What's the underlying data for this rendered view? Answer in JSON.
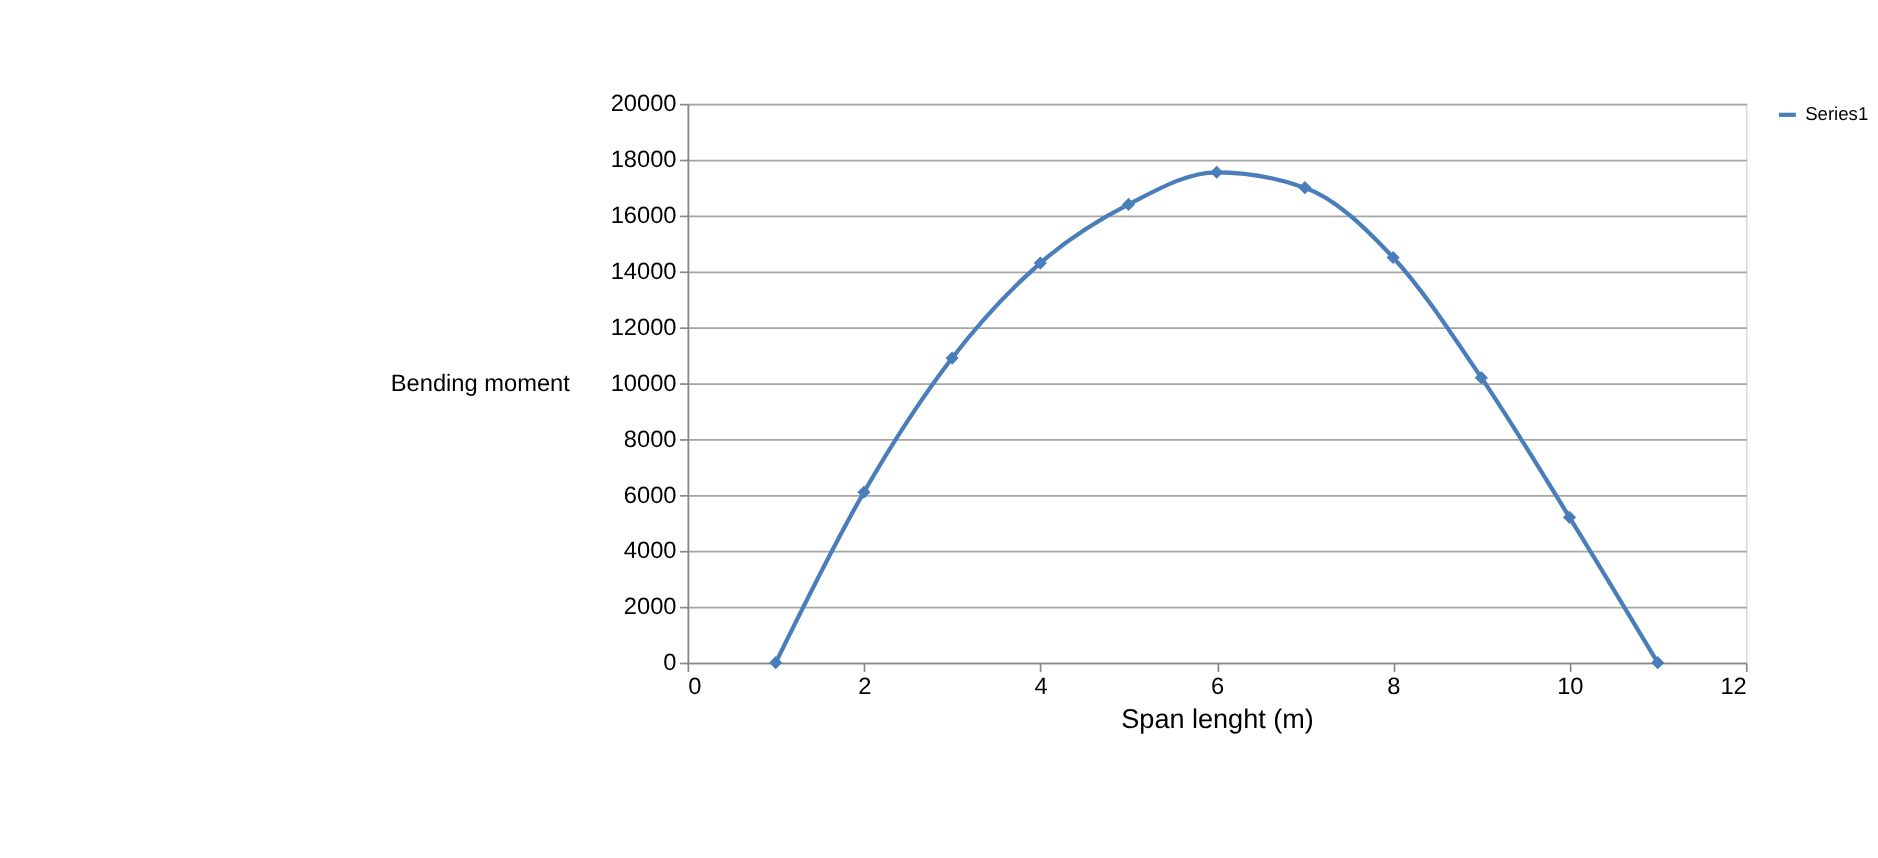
{
  "chart_data": {
    "type": "line",
    "xlabel": "Span lenght (m)",
    "ylabel": "Bending moment",
    "x": [
      1,
      2,
      3,
      4,
      5,
      6,
      7,
      8,
      9,
      10,
      11
    ],
    "series": [
      {
        "name": "Series1",
        "color": "#4a7ebb",
        "values": [
          0,
          6100,
          10900,
          14300,
          16400,
          17550,
          17000,
          14500,
          10200,
          5200,
          0
        ]
      }
    ],
    "xlim": [
      0,
      12
    ],
    "xticks": [
      0,
      2,
      4,
      6,
      8,
      10,
      12
    ],
    "ylim": [
      0,
      20000
    ],
    "yticks": [
      0,
      2000,
      4000,
      6000,
      8000,
      10000,
      12000,
      14000,
      16000,
      18000,
      20000
    ],
    "grid": "y",
    "legend": "right",
    "marker": "diamond",
    "line_style": "solid"
  }
}
